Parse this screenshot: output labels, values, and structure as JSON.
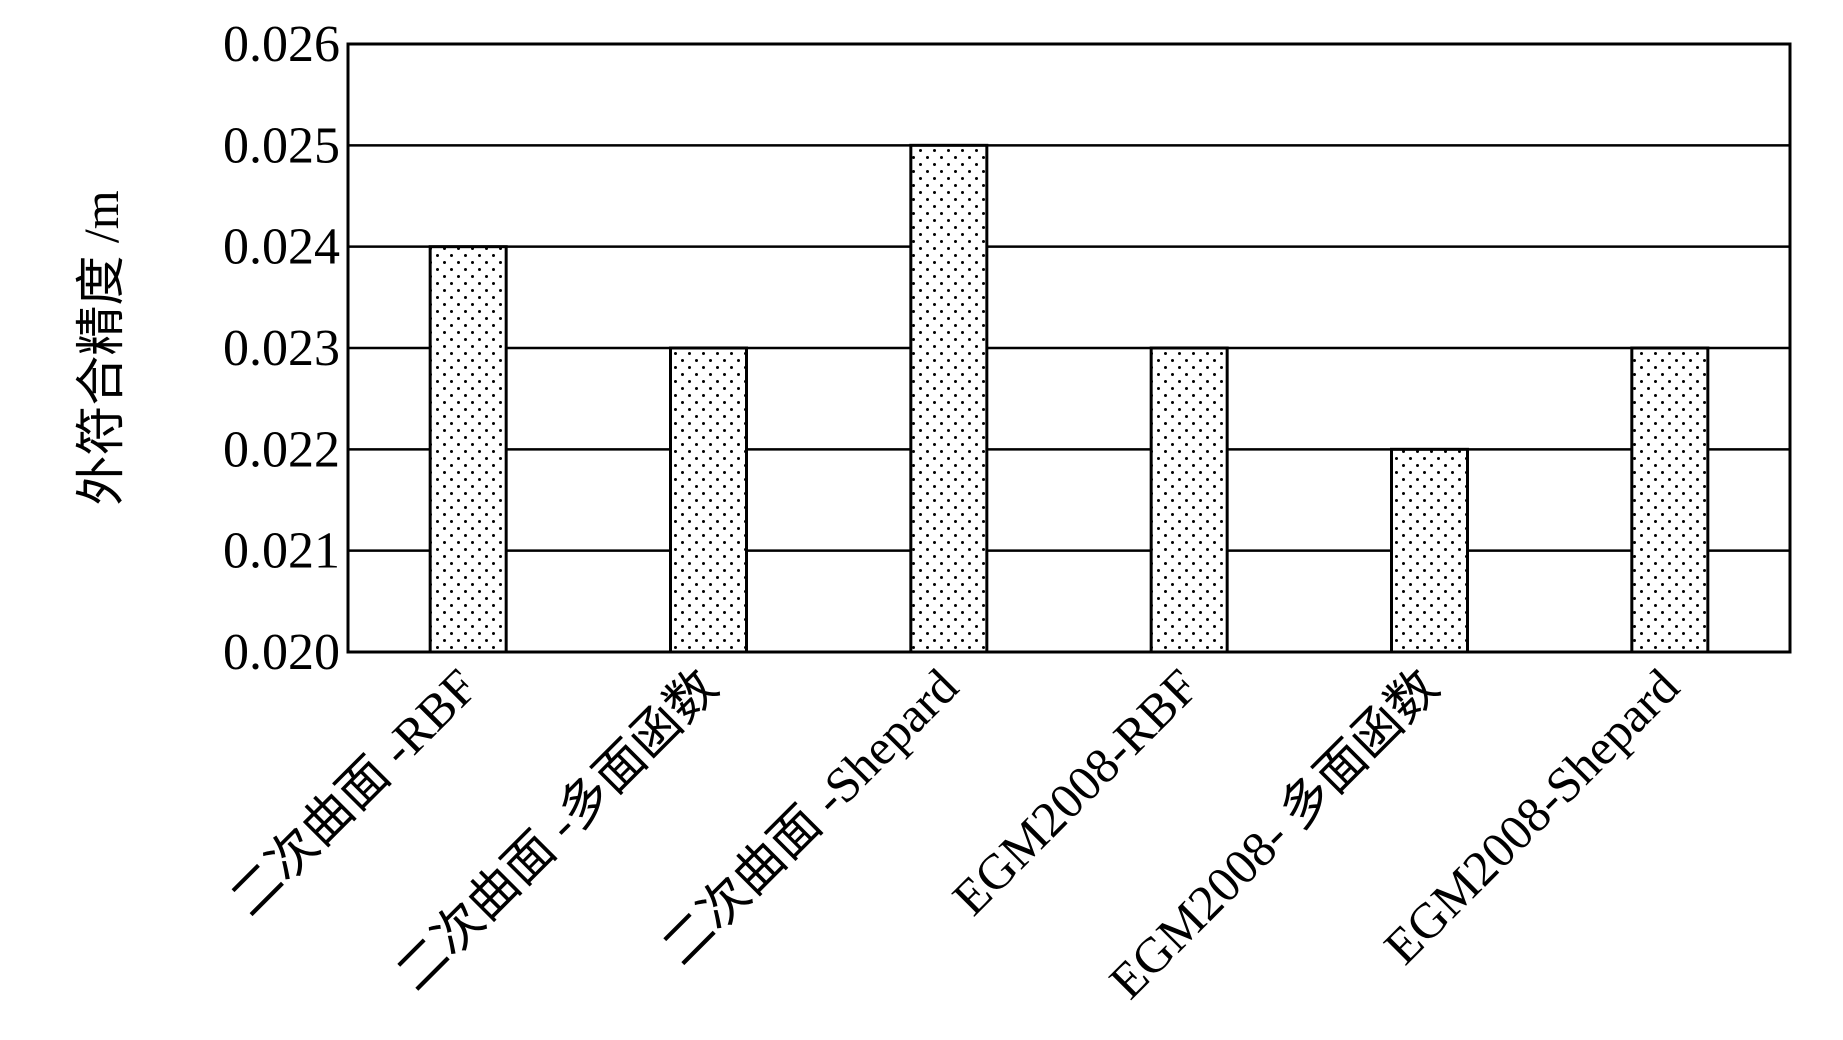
{
  "chart_data": {
    "type": "bar",
    "title": "",
    "xlabel": "",
    "ylabel": "外符合精度 /m",
    "categories": [
      "二次曲面 -RBF",
      "二次曲面 -多面函数",
      "二次曲面 -Shepard",
      "EGM2008-RBF",
      "EGM2008- 多面函数",
      "EGM2008-Shepard"
    ],
    "values": [
      0.024,
      0.023,
      0.025,
      0.023,
      0.022,
      0.023
    ],
    "ylim": [
      0.02,
      0.026
    ],
    "yticks": [
      "0.020",
      "0.021",
      "0.022",
      "0.023",
      "0.024",
      "0.025",
      "0.026"
    ],
    "grid": true,
    "bar_fill": "dotted",
    "colors": {
      "bar": "#ffffff",
      "dots": "#000000",
      "lines": "#000000"
    }
  }
}
